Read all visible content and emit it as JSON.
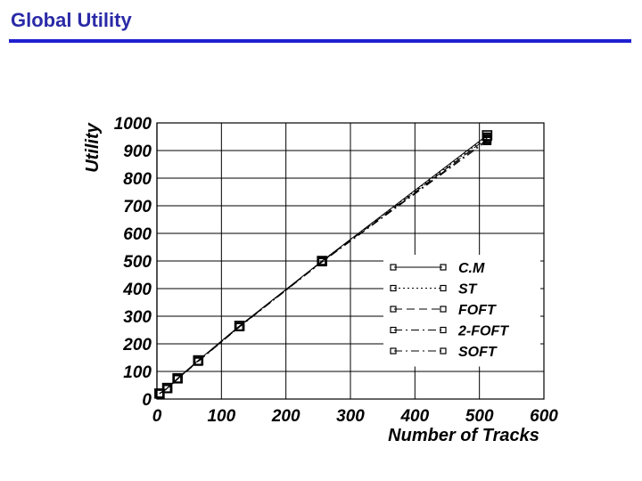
{
  "slide": {
    "title": "Global Utility"
  },
  "colors": {
    "title": "#2a2aa8",
    "rule": "#1f1fd0",
    "ink": "#000000"
  },
  "chart_data": {
    "type": "line",
    "title": "",
    "xlabel": "Number of Tracks",
    "ylabel": "Utility",
    "xlim": [
      0,
      600
    ],
    "ylim": [
      0,
      1000
    ],
    "xticks": [
      0,
      100,
      200,
      300,
      400,
      500,
      600
    ],
    "yticks": [
      0,
      100,
      200,
      300,
      400,
      500,
      600,
      700,
      800,
      900,
      1000
    ],
    "grid": true,
    "legend_position": "right",
    "series": [
      {
        "name": "C.M",
        "dash": "solid",
        "x": [
          4,
          16,
          32,
          64,
          128,
          256,
          512
        ],
        "y": [
          20,
          40,
          75,
          140,
          265,
          500,
          955
        ]
      },
      {
        "name": "ST",
        "dash": "dotted",
        "x": [
          4,
          16,
          32,
          64,
          128,
          256,
          512
        ],
        "y": [
          20,
          38,
          74,
          138,
          263,
          500,
          950
        ]
      },
      {
        "name": "FOFT",
        "dash": "dashed",
        "x": [
          4,
          16,
          32,
          64,
          128,
          256,
          512
        ],
        "y": [
          20,
          38,
          73,
          137,
          262,
          498,
          945
        ]
      },
      {
        "name": "2-FOFT",
        "dash": "dash-dot",
        "x": [
          4,
          16,
          32,
          64,
          128,
          256,
          512
        ],
        "y": [
          20,
          37,
          72,
          136,
          262,
          497,
          940
        ]
      },
      {
        "name": "SOFT",
        "dash": "dash-dot",
        "x": [
          4,
          16,
          32,
          64,
          128,
          256,
          512
        ],
        "y": [
          20,
          37,
          72,
          136,
          261,
          496,
          935
        ]
      }
    ]
  }
}
